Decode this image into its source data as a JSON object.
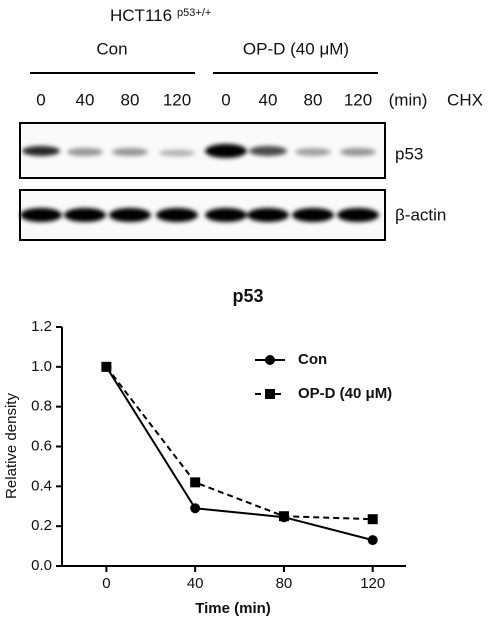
{
  "blot": {
    "cell_line": "HCT116",
    "genotype": "p53+/+",
    "groups": [
      "Con",
      "OP-D (40 μM)"
    ],
    "lanes": [
      "0",
      "40",
      "80",
      "120",
      "0",
      "40",
      "80",
      "120"
    ],
    "unit": "(min)",
    "treatment": "CHX",
    "rows": [
      "p53",
      "β-actin"
    ]
  },
  "chart_data": {
    "type": "line",
    "title": "p53",
    "x_label": "Time (min)",
    "y_label": "Relative density",
    "x": [
      0,
      40,
      80,
      120
    ],
    "xlim": [
      -20,
      135
    ],
    "xticks": [
      0,
      40,
      80,
      120
    ],
    "ylim": [
      0,
      1.2
    ],
    "yticks": [
      {
        "value": 0,
        "label": "0.0"
      },
      {
        "value": 0.2,
        "label": "0.2"
      },
      {
        "value": 0.4,
        "label": "0.4"
      },
      {
        "value": 0.6,
        "label": "0.6"
      },
      {
        "value": 0.8,
        "label": "0.8"
      },
      {
        "value": 1,
        "label": "1.0"
      },
      {
        "value": 1.2,
        "label": "1.2"
      }
    ],
    "legend": "upper right",
    "series": [
      {
        "name": "Con",
        "color": "#000000",
        "marker": "circle",
        "dashed": false,
        "values": [
          1.0,
          0.29,
          0.245,
          0.13
        ]
      },
      {
        "name": "OP-D (40 μM)",
        "color": "#000000",
        "marker": "square",
        "dashed": true,
        "values": [
          1.0,
          0.42,
          0.25,
          0.235
        ]
      }
    ]
  }
}
